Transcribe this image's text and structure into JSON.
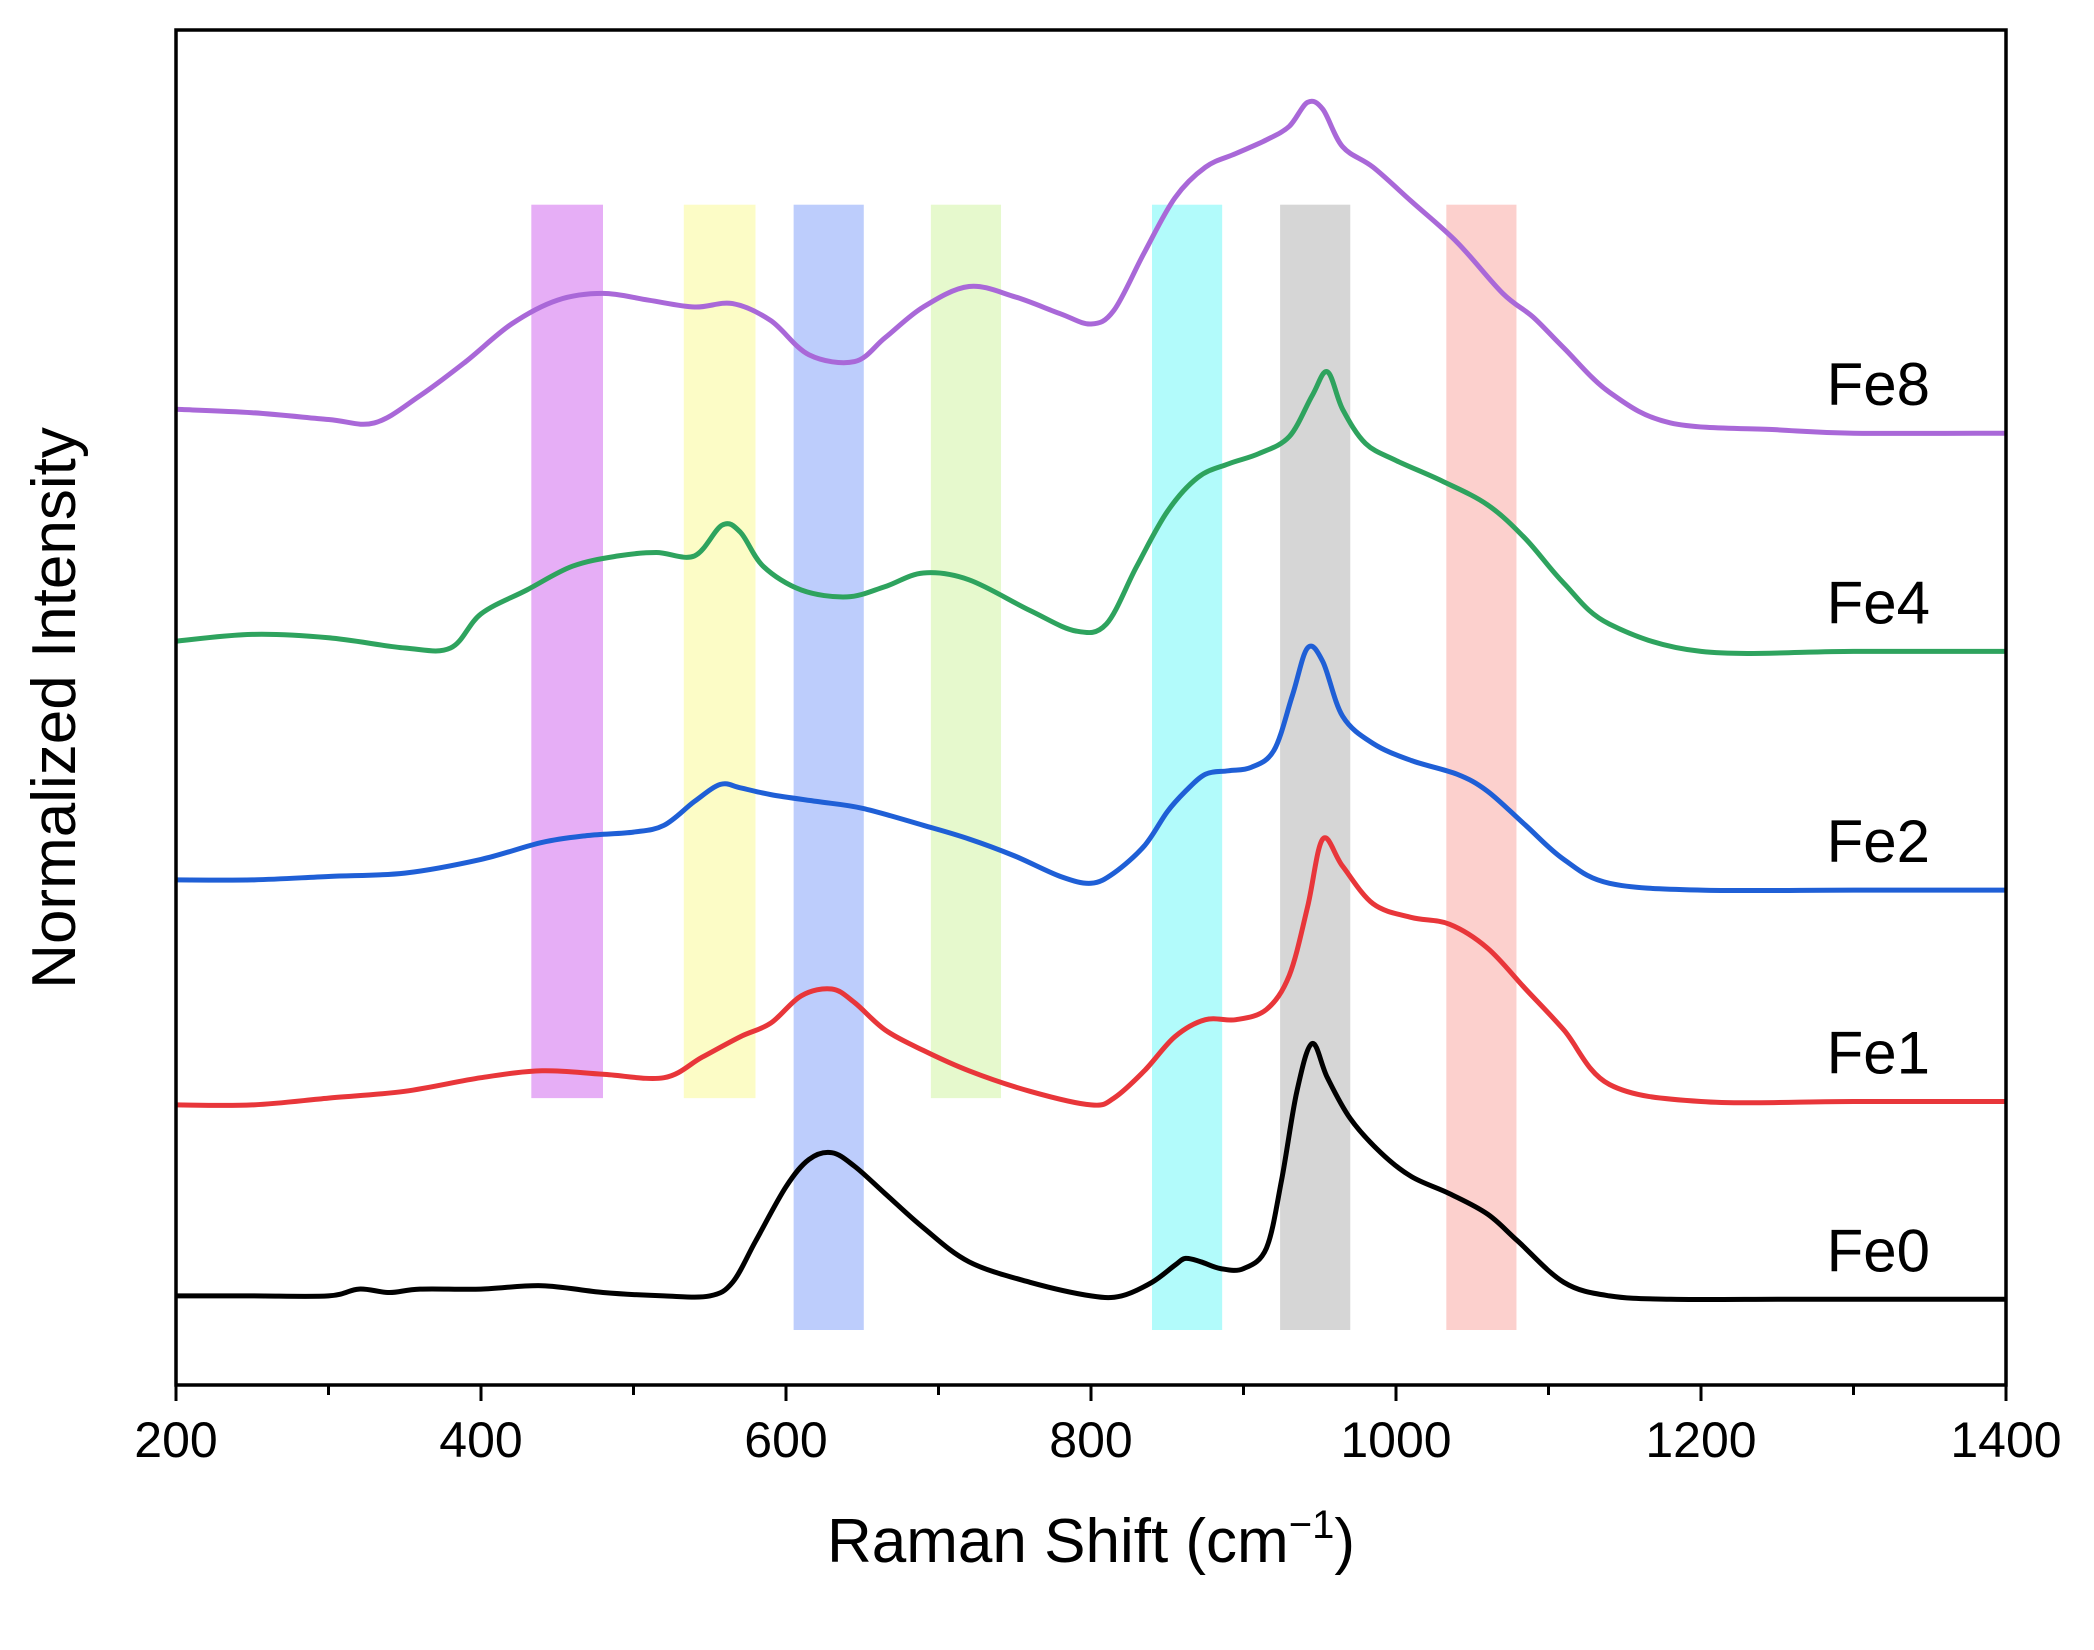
{
  "chart_data": {
    "type": "line",
    "title": "",
    "xlabel": "Raman Shift (cm",
    "xlabel_sup": "−1",
    "xlabel_close": ")",
    "ylabel": "Normalized Intensity",
    "xlim": [
      200,
      1400
    ],
    "xticks": [
      200,
      400,
      600,
      800,
      1000,
      1200,
      1400
    ],
    "xtick_labels": [
      "200",
      "400",
      "600",
      "800",
      "1000",
      "1200",
      "1400"
    ],
    "grid": false,
    "bands": [
      {
        "name": "band-455",
        "x_range": [
          433,
          480
        ],
        "color": "#e2a0f5",
        "y_range": [
          0.34,
          1.65
        ]
      },
      {
        "name": "band-557",
        "x_range": [
          533,
          580
        ],
        "color": "#fbfbbc",
        "y_range": [
          0.34,
          1.65
        ]
      },
      {
        "name": "band-628",
        "x_range": [
          605,
          651
        ],
        "color": "#b2c4fb",
        "y_range": [
          0.0,
          1.65
        ]
      },
      {
        "name": "band-718",
        "x_range": [
          695,
          741
        ],
        "color": "#e2f8c4",
        "y_range": [
          0.34,
          1.65
        ]
      },
      {
        "name": "band-863",
        "x_range": [
          840,
          886
        ],
        "color": "#a4fafa",
        "y_range": [
          0.0,
          1.65
        ]
      },
      {
        "name": "band-947",
        "x_range": [
          924,
          970
        ],
        "color": "#cfcfcf",
        "y_range": [
          0.0,
          1.65
        ]
      },
      {
        "name": "band-1056",
        "x_range": [
          1033,
          1079
        ],
        "color": "#fbc8c4",
        "y_range": [
          0.0,
          1.65
        ]
      }
    ],
    "series": [
      {
        "name": "Fe0",
        "color": "#000000",
        "x": [
          200,
          250,
          300,
          320,
          340,
          360,
          400,
          440,
          480,
          520,
          550,
          565,
          580,
          600,
          615,
          630,
          645,
          665,
          690,
          720,
          760,
          800,
          820,
          840,
          855,
          862,
          872,
          885,
          900,
          915,
          925,
          935,
          945,
          955,
          970,
          990,
          1010,
          1035,
          1060,
          1080,
          1110,
          1140,
          1180,
          1250,
          1300,
          1400
        ],
        "values": [
          0.05,
          0.05,
          0.05,
          0.06,
          0.055,
          0.06,
          0.06,
          0.065,
          0.055,
          0.05,
          0.05,
          0.07,
          0.13,
          0.21,
          0.25,
          0.26,
          0.24,
          0.2,
          0.15,
          0.1,
          0.07,
          0.05,
          0.05,
          0.07,
          0.095,
          0.105,
          0.1,
          0.09,
          0.09,
          0.12,
          0.22,
          0.35,
          0.42,
          0.37,
          0.31,
          0.26,
          0.225,
          0.2,
          0.17,
          0.13,
          0.07,
          0.05,
          0.045,
          0.045,
          0.045,
          0.045
        ]
      },
      {
        "name": "Fe1",
        "color": "#e8363a",
        "x": [
          200,
          250,
          300,
          350,
          400,
          440,
          480,
          520,
          545,
          570,
          590,
          610,
          630,
          645,
          665,
          690,
          720,
          760,
          800,
          815,
          835,
          855,
          875,
          895,
          915,
          930,
          942,
          952,
          965,
          985,
          1010,
          1035,
          1060,
          1085,
          1110,
          1140,
          1200,
          1300,
          1400
        ],
        "values": [
          0.33,
          0.33,
          0.34,
          0.35,
          0.37,
          0.38,
          0.375,
          0.37,
          0.4,
          0.43,
          0.45,
          0.49,
          0.5,
          0.48,
          0.44,
          0.41,
          0.38,
          0.35,
          0.33,
          0.34,
          0.38,
          0.43,
          0.455,
          0.455,
          0.47,
          0.52,
          0.62,
          0.72,
          0.68,
          0.625,
          0.605,
          0.595,
          0.56,
          0.5,
          0.44,
          0.36,
          0.335,
          0.335,
          0.335
        ]
      },
      {
        "name": "Fe2",
        "color": "#1f5fd6",
        "x": [
          200,
          250,
          300,
          350,
          400,
          440,
          470,
          500,
          520,
          540,
          557,
          570,
          590,
          620,
          650,
          690,
          720,
          750,
          780,
          800,
          815,
          835,
          850,
          862,
          875,
          890,
          905,
          920,
          932,
          942,
          952,
          965,
          985,
          1010,
          1040,
          1060,
          1085,
          1110,
          1140,
          1200,
          1300,
          1400
        ],
        "values": [
          0.66,
          0.66,
          0.665,
          0.67,
          0.69,
          0.715,
          0.725,
          0.73,
          0.74,
          0.775,
          0.8,
          0.795,
          0.785,
          0.775,
          0.765,
          0.74,
          0.72,
          0.695,
          0.665,
          0.655,
          0.67,
          0.71,
          0.76,
          0.79,
          0.815,
          0.82,
          0.825,
          0.85,
          0.93,
          1.0,
          0.98,
          0.9,
          0.86,
          0.835,
          0.815,
          0.79,
          0.74,
          0.69,
          0.655,
          0.645,
          0.645,
          0.645
        ]
      },
      {
        "name": "Fe4",
        "color": "#2ea35e",
        "x": [
          200,
          250,
          300,
          350,
          380,
          400,
          430,
          460,
          490,
          515,
          540,
          558,
          570,
          585,
          610,
          640,
          665,
          690,
          720,
          760,
          790,
          810,
          830,
          850,
          870,
          890,
          910,
          930,
          945,
          955,
          965,
          980,
          1000,
          1030,
          1060,
          1085,
          1110,
          1140,
          1200,
          1300,
          1400
        ],
        "values": [
          1.01,
          1.02,
          1.015,
          1.0,
          1.0,
          1.05,
          1.085,
          1.12,
          1.135,
          1.14,
          1.135,
          1.18,
          1.17,
          1.12,
          1.085,
          1.075,
          1.09,
          1.11,
          1.1,
          1.055,
          1.025,
          1.035,
          1.12,
          1.2,
          1.25,
          1.27,
          1.285,
          1.31,
          1.37,
          1.405,
          1.35,
          1.3,
          1.275,
          1.245,
          1.21,
          1.16,
          1.095,
          1.035,
          0.995,
          0.995,
          0.995
        ]
      },
      {
        "name": "Fe8",
        "color": "#a968d8",
        "x": [
          200,
          250,
          300,
          330,
          360,
          390,
          420,
          450,
          480,
          510,
          540,
          565,
          590,
          615,
          645,
          665,
          690,
          720,
          750,
          780,
          800,
          815,
          835,
          855,
          875,
          895,
          915,
          930,
          942,
          952,
          965,
          985,
          1010,
          1040,
          1070,
          1090,
          1110,
          1140,
          1180,
          1250,
          1300,
          1400
        ],
        "values": [
          1.35,
          1.345,
          1.335,
          1.33,
          1.37,
          1.42,
          1.475,
          1.51,
          1.52,
          1.51,
          1.5,
          1.505,
          1.48,
          1.43,
          1.42,
          1.455,
          1.5,
          1.53,
          1.515,
          1.49,
          1.475,
          1.495,
          1.58,
          1.66,
          1.705,
          1.725,
          1.745,
          1.765,
          1.8,
          1.79,
          1.735,
          1.705,
          1.655,
          1.595,
          1.52,
          1.485,
          1.44,
          1.375,
          1.33,
          1.32,
          1.315,
          1.315
        ]
      }
    ]
  }
}
